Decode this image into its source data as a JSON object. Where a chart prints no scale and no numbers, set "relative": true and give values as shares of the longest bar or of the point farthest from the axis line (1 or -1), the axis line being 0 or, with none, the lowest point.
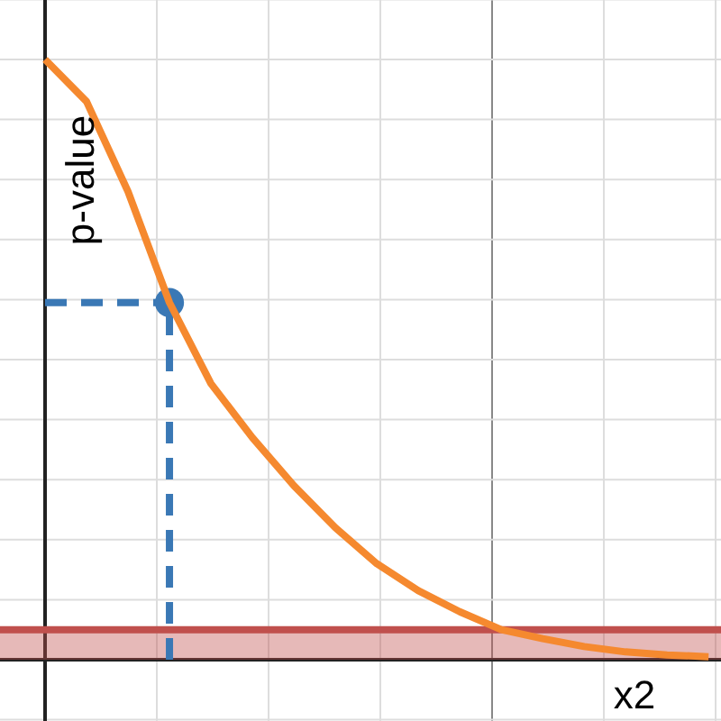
{
  "chart_data": {
    "type": "line",
    "relative": true,
    "xlabel": "x2",
    "ylabel": "p-value",
    "grid": true,
    "categories": [
      null,
      null,
      null,
      null,
      null,
      null,
      null,
      null,
      null,
      null,
      null,
      null,
      null,
      null,
      null,
      null,
      null
    ],
    "series": [
      {
        "color": "#f5892f",
        "values": [
          1.0,
          0.93,
          0.78,
          0.595,
          0.46,
          0.37,
          0.29,
          0.22,
          0.16,
          0.115,
          0.08,
          0.05,
          0.035,
          0.022,
          0.013,
          0.008,
          0.005
        ]
      }
    ],
    "ref_lines": [
      {
        "axis": "y",
        "value": 0.595,
        "color": "#3a78b5",
        "line_style": "dashed"
      },
      {
        "axis": "y",
        "value": 0.05,
        "color": "#c0504d",
        "line_style": "solid"
      }
    ],
    "bands": [
      {
        "axis": "y",
        "from": 0,
        "to": 0.05,
        "color": "#c0504d"
      }
    ]
  }
}
